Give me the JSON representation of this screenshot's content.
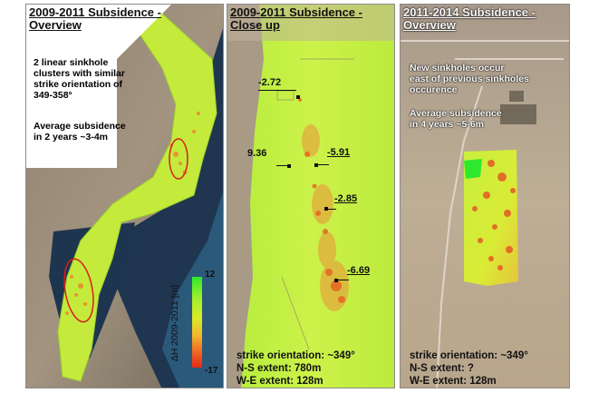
{
  "panels": [
    {
      "title_line1": "2009-2011 Subsidence -",
      "title_line2": "Overview",
      "note_lines": [
        "2 linear sinkhole",
        "clusters with similar",
        "strike orientation of",
        "349-358°"
      ],
      "note2_lines": [
        "Average subsidence",
        "in 2 years ~3-4m"
      ],
      "legend": {
        "title": "ΔH 2009-2011 [m]",
        "max": "12",
        "min": "-17",
        "colors": [
          "#2ee82e",
          "#d8ec28",
          "#f06a22",
          "#e82818"
        ]
      }
    },
    {
      "title_line1": "2009-2011 Subsidence -",
      "title_line2": "Close up",
      "labels": [
        "-2.72",
        "9.36",
        "-5.91",
        "-2.85",
        "-6.69"
      ],
      "stats": [
        "strike orientation: ~349°",
        "N-S extent: 780m",
        "W-E extent: 128m"
      ]
    },
    {
      "title_line1": "2011-2014 Subsidence -",
      "title_line2": "Overview",
      "note_lines": [
        "New sinkholes occur",
        "east of previous sinkholes",
        "occurence"
      ],
      "note2_lines": [
        "Average subsidence",
        "in 4 years ~5-6m"
      ],
      "stats": [
        "strike orientation: ~349°",
        "N-S extent: ?",
        "W-E extent: 128m"
      ]
    }
  ]
}
